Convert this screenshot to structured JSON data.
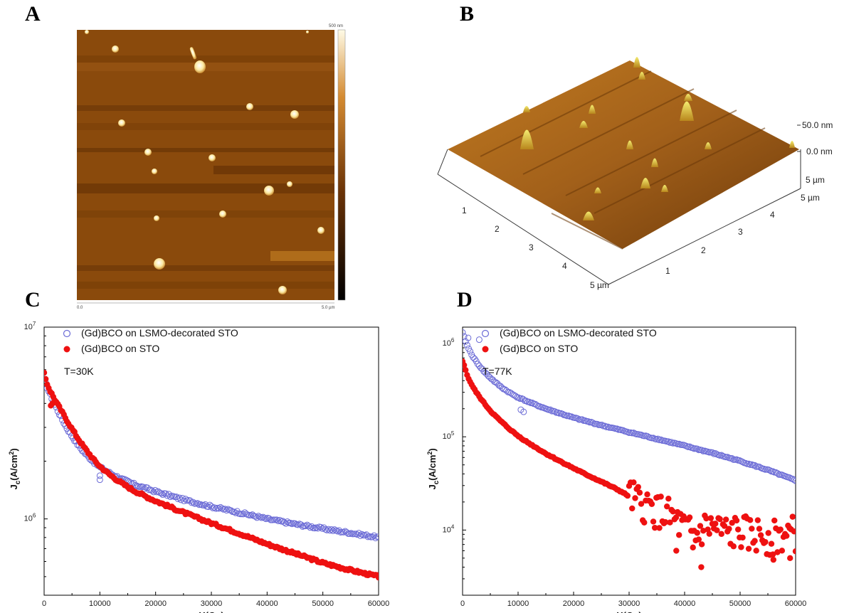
{
  "panel_labels": {
    "a": "A",
    "b": "B",
    "c": "C",
    "d": "D"
  },
  "afm_2d": {
    "colorbar_max_label": "500 nm",
    "x_start_label": "0.0",
    "x_end_label": "5.0 µm",
    "colors": {
      "background": "#8a4a0c",
      "particle": "#fff4c8",
      "stripe_dark": "#6e3808",
      "stripe_light": "#9c5a18"
    }
  },
  "afm_3d": {
    "z_labels": [
      "50.0 nm",
      "0.0 nm"
    ],
    "x_axis_ticks": [
      "1",
      "2",
      "3",
      "4",
      "5 µm"
    ],
    "y_axis_ticks": [
      "1",
      "2",
      "3",
      "4",
      "5 µm"
    ],
    "corner_label": "5 µm",
    "colors": {
      "surface_top": "#b87018",
      "surface_bottom": "#6a3a0a",
      "peak": "#f0e060"
    }
  },
  "chart_data": [
    {
      "type": "scatter",
      "panel": "C",
      "annotation": "T=30K",
      "xlabel": "H(Oe)",
      "ylabel": "J_c(A/cm^2)",
      "ylabel_main": "J",
      "ylabel_sub": "c",
      "ylabel_rest": "(A/cm",
      "ylabel_sup": "2",
      "ylabel_end": ")",
      "xlim": [
        0,
        60000
      ],
      "ylim": [
        400000,
        10000000
      ],
      "yscale": "log",
      "x_ticks": [
        "0",
        "10000",
        "20000",
        "30000",
        "40000",
        "50000",
        "60000"
      ],
      "y_tick_labels": [
        {
          "base": "10",
          "exp": "7",
          "value": 10000000
        },
        {
          "base": "10",
          "exp": "6",
          "value": 1000000
        }
      ],
      "legend_position": "top-left",
      "series": [
        {
          "name": "(Gd)BCO on LSMO-decorated  STO",
          "marker": "open-circle",
          "color": "#6b6bd6",
          "points": [
            [
              0,
              5300000
            ],
            [
              500,
              4900000
            ],
            [
              1000,
              4500000
            ],
            [
              2000,
              3900000
            ],
            [
              3000,
              3400000
            ],
            [
              4000,
              3000000
            ],
            [
              5000,
              2700000
            ],
            [
              6000,
              2450000
            ],
            [
              7000,
              2250000
            ],
            [
              8000,
              2100000
            ],
            [
              9000,
              1970000
            ],
            [
              10000,
              1860000
            ],
            [
              12000,
              1720000
            ],
            [
              14000,
              1610000
            ],
            [
              16000,
              1520000
            ],
            [
              18000,
              1450000
            ],
            [
              20000,
              1390000
            ],
            [
              25000,
              1260000
            ],
            [
              30000,
              1160000
            ],
            [
              35000,
              1080000
            ],
            [
              40000,
              1000000
            ],
            [
              45000,
              940000
            ],
            [
              50000,
              890000
            ],
            [
              55000,
              845000
            ],
            [
              60000,
              800000
            ]
          ],
          "outliers": [
            [
              10000,
              1600000
            ],
            [
              10000,
              1680000
            ]
          ]
        },
        {
          "name": "(Gd)BCO on STO",
          "marker": "filled-circle",
          "color": "#ee1111",
          "points": [
            [
              0,
              5700000
            ],
            [
              500,
              5100000
            ],
            [
              1000,
              4700000
            ],
            [
              2000,
              4150000
            ],
            [
              3000,
              3700000
            ],
            [
              4000,
              3300000
            ],
            [
              5000,
              2950000
            ],
            [
              6000,
              2650000
            ],
            [
              7000,
              2400000
            ],
            [
              8000,
              2200000
            ],
            [
              9000,
              2020000
            ],
            [
              10000,
              1880000
            ],
            [
              12000,
              1680000
            ],
            [
              14000,
              1530000
            ],
            [
              16000,
              1410000
            ],
            [
              18000,
              1320000
            ],
            [
              20000,
              1240000
            ],
            [
              25000,
              1080000
            ],
            [
              30000,
              950000
            ],
            [
              35000,
              840000
            ],
            [
              40000,
              740000
            ],
            [
              45000,
              660000
            ],
            [
              50000,
              590000
            ],
            [
              55000,
              540000
            ],
            [
              60000,
              500000
            ]
          ],
          "outliers": [
            [
              1200,
              3900000
            ],
            [
              1500,
              4000000
            ]
          ]
        }
      ]
    },
    {
      "type": "scatter",
      "panel": "D",
      "annotation": "T=77K",
      "xlabel": "H(Oe)",
      "ylabel": "J_c(A/cm^2)",
      "ylabel_main": "J",
      "ylabel_sub": "c",
      "ylabel_rest": "(A/cm",
      "ylabel_sup": "2",
      "ylabel_end": ")",
      "xlim": [
        0,
        60000
      ],
      "ylim": [
        2000,
        1500000
      ],
      "yscale": "log",
      "x_ticks": [
        "0",
        "10000",
        "20000",
        "30000",
        "40000",
        "50000",
        "60000"
      ],
      "y_tick_labels": [
        {
          "base": "10",
          "exp": "6",
          "value": 1000000
        },
        {
          "base": "10",
          "exp": "5",
          "value": 100000
        },
        {
          "base": "10",
          "exp": "4",
          "value": 10000
        }
      ],
      "legend_position": "top-left",
      "series": [
        {
          "name": "(Gd)BCO on LSMO-decorated  STO",
          "marker": "open-circle",
          "color": "#6b6bd6",
          "points": [
            [
              0,
              1300000
            ],
            [
              1000,
              900000
            ],
            [
              2000,
              700000
            ],
            [
              3000,
              580000
            ],
            [
              4000,
              490000
            ],
            [
              5000,
              430000
            ],
            [
              6000,
              380000
            ],
            [
              7000,
              340000
            ],
            [
              8000,
              310000
            ],
            [
              9000,
              285000
            ],
            [
              10000,
              265000
            ],
            [
              12000,
              235000
            ],
            [
              15000,
              200000
            ],
            [
              20000,
              160000
            ],
            [
              25000,
              133000
            ],
            [
              30000,
              112000
            ],
            [
              35000,
              95000
            ],
            [
              40000,
              80000
            ],
            [
              45000,
              67000
            ],
            [
              50000,
              55000
            ],
            [
              55000,
              44000
            ],
            [
              60000,
              34000
            ]
          ],
          "outliers": [
            [
              10500,
              195000
            ],
            [
              11000,
              185000
            ],
            [
              1000,
              1150000
            ],
            [
              3000,
              1100000
            ]
          ]
        },
        {
          "name": "(Gd)BCO on STO",
          "marker": "filled-circle",
          "color": "#ee1111",
          "points": [
            [
              0,
              650000
            ],
            [
              1000,
              430000
            ],
            [
              2000,
              330000
            ],
            [
              3000,
              270000
            ],
            [
              4000,
              225000
            ],
            [
              5000,
              190000
            ],
            [
              6000,
              165000
            ],
            [
              7000,
              145000
            ],
            [
              8000,
              128000
            ],
            [
              9000,
              114000
            ],
            [
              10000,
              102000
            ],
            [
              12000,
              85000
            ],
            [
              15000,
              66000
            ],
            [
              18000,
              53000
            ],
            [
              20000,
              46000
            ],
            [
              22000,
              40000
            ],
            [
              25000,
              33000
            ],
            [
              28000,
              27000
            ],
            [
              30000,
              23000
            ],
            [
              32000,
              19000
            ],
            [
              34000,
              17000
            ],
            [
              36000,
              15000
            ],
            [
              38000,
              13000
            ],
            [
              40000,
              10000
            ],
            [
              42000,
              8500
            ],
            [
              44000,
              11000
            ],
            [
              46000,
              10000
            ],
            [
              48000,
              9000
            ],
            [
              50000,
              9500
            ],
            [
              52000,
              8500
            ],
            [
              54000,
              9000
            ],
            [
              56000,
              8000
            ],
            [
              58000,
              9000
            ],
            [
              60000,
              9000
            ]
          ],
          "scatter_band": {
            "from_x": 30000,
            "to_x": 60000
          },
          "outliers": [
            [
              43000,
              4000
            ],
            [
              56000,
              4800
            ],
            [
              59000,
              5000
            ],
            [
              38500,
              6000
            ],
            [
              41500,
              6500
            ]
          ]
        }
      ]
    }
  ]
}
